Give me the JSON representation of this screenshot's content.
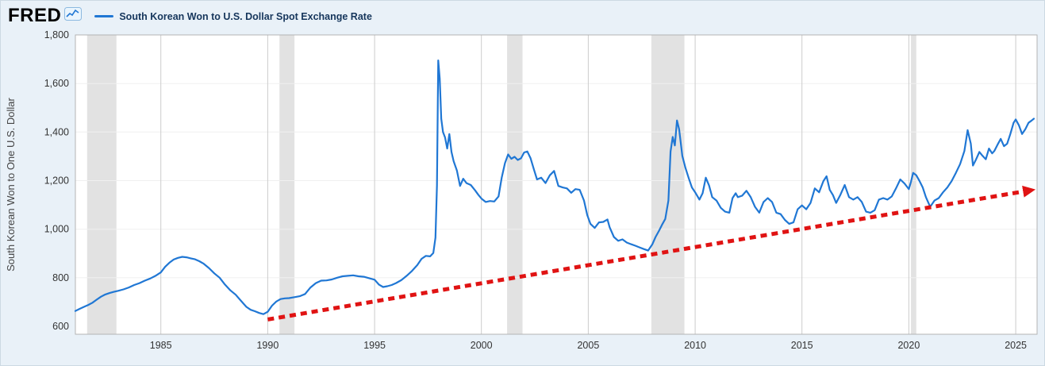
{
  "header": {
    "logo_text": "FRED",
    "legend": {
      "label": "South Korean Won to U.S. Dollar Spot Exchange Rate",
      "series_color": "#2077d4"
    }
  },
  "chart_data": {
    "type": "line",
    "title": "South Korean Won to U.S. Dollar Spot Exchange Rate",
    "xlabel": "",
    "ylabel": "South Korean Won to One U.S. Dollar",
    "xlim": [
      1981,
      2026
    ],
    "ylim": [
      600,
      1800
    ],
    "x_ticks": [
      1985,
      1990,
      1995,
      2000,
      2005,
      2010,
      2015,
      2020,
      2025
    ],
    "y_ticks": [
      {
        "value": 600,
        "label": "600"
      },
      {
        "value": 800,
        "label": "800"
      },
      {
        "value": 1000,
        "label": "1,000"
      },
      {
        "value": 1200,
        "label": "1,200"
      },
      {
        "value": 1400,
        "label": "1,400"
      },
      {
        "value": 1600,
        "label": "1,600"
      },
      {
        "value": 1800,
        "label": "1,800"
      }
    ],
    "grid": "vertical",
    "legend_position": "top-left",
    "recession_color": "#e2e2e2",
    "recession_bands": [
      {
        "start": 1981.55,
        "end": 1982.92
      },
      {
        "start": 1990.55,
        "end": 1991.25
      },
      {
        "start": 2001.2,
        "end": 2001.92
      },
      {
        "start": 2007.95,
        "end": 2009.5
      },
      {
        "start": 2020.1,
        "end": 2020.35
      }
    ],
    "series": [
      {
        "name": "South Korean Won to U.S. Dollar Spot Exchange Rate",
        "color": "#2077d4",
        "points": [
          [
            1981.0,
            663
          ],
          [
            1981.2,
            672
          ],
          [
            1981.4,
            680
          ],
          [
            1981.6,
            688
          ],
          [
            1981.8,
            697
          ],
          [
            1982.0,
            710
          ],
          [
            1982.2,
            722
          ],
          [
            1982.4,
            731
          ],
          [
            1982.6,
            737
          ],
          [
            1982.8,
            742
          ],
          [
            1983.0,
            746
          ],
          [
            1983.25,
            752
          ],
          [
            1983.5,
            760
          ],
          [
            1983.75,
            770
          ],
          [
            1984.0,
            778
          ],
          [
            1984.25,
            788
          ],
          [
            1984.5,
            797
          ],
          [
            1984.75,
            808
          ],
          [
            1985.0,
            822
          ],
          [
            1985.2,
            845
          ],
          [
            1985.4,
            862
          ],
          [
            1985.6,
            875
          ],
          [
            1985.8,
            882
          ],
          [
            1986.0,
            886
          ],
          [
            1986.2,
            884
          ],
          [
            1986.4,
            880
          ],
          [
            1986.6,
            876
          ],
          [
            1986.8,
            868
          ],
          [
            1987.0,
            858
          ],
          [
            1987.25,
            840
          ],
          [
            1987.5,
            818
          ],
          [
            1987.75,
            800
          ],
          [
            1988.0,
            772
          ],
          [
            1988.25,
            748
          ],
          [
            1988.5,
            730
          ],
          [
            1988.75,
            705
          ],
          [
            1989.0,
            680
          ],
          [
            1989.2,
            668
          ],
          [
            1989.4,
            662
          ],
          [
            1989.6,
            655
          ],
          [
            1989.8,
            650
          ],
          [
            1990.0,
            660
          ],
          [
            1990.2,
            685
          ],
          [
            1990.4,
            702
          ],
          [
            1990.6,
            712
          ],
          [
            1990.8,
            715
          ],
          [
            1991.0,
            716
          ],
          [
            1991.25,
            720
          ],
          [
            1991.5,
            724
          ],
          [
            1991.75,
            733
          ],
          [
            1992.0,
            760
          ],
          [
            1992.25,
            778
          ],
          [
            1992.5,
            788
          ],
          [
            1992.75,
            789
          ],
          [
            1993.0,
            793
          ],
          [
            1993.25,
            800
          ],
          [
            1993.5,
            806
          ],
          [
            1993.75,
            808
          ],
          [
            1994.0,
            810
          ],
          [
            1994.25,
            806
          ],
          [
            1994.5,
            804
          ],
          [
            1994.75,
            798
          ],
          [
            1995.0,
            792
          ],
          [
            1995.2,
            772
          ],
          [
            1995.4,
            762
          ],
          [
            1995.6,
            765
          ],
          [
            1995.8,
            770
          ],
          [
            1996.0,
            778
          ],
          [
            1996.25,
            790
          ],
          [
            1996.5,
            808
          ],
          [
            1996.75,
            828
          ],
          [
            1997.0,
            852
          ],
          [
            1997.2,
            878
          ],
          [
            1997.4,
            890
          ],
          [
            1997.6,
            888
          ],
          [
            1997.75,
            902
          ],
          [
            1997.85,
            965
          ],
          [
            1997.92,
            1180
          ],
          [
            1997.98,
            1695
          ],
          [
            1998.05,
            1620
          ],
          [
            1998.12,
            1455
          ],
          [
            1998.2,
            1400
          ],
          [
            1998.3,
            1378
          ],
          [
            1998.4,
            1332
          ],
          [
            1998.5,
            1392
          ],
          [
            1998.6,
            1318
          ],
          [
            1998.7,
            1280
          ],
          [
            1998.85,
            1242
          ],
          [
            1999.0,
            1178
          ],
          [
            1999.15,
            1208
          ],
          [
            1999.3,
            1190
          ],
          [
            1999.5,
            1182
          ],
          [
            1999.7,
            1160
          ],
          [
            1999.85,
            1142
          ],
          [
            2000.0,
            1126
          ],
          [
            2000.2,
            1112
          ],
          [
            2000.4,
            1116
          ],
          [
            2000.6,
            1114
          ],
          [
            2000.8,
            1135
          ],
          [
            2000.95,
            1212
          ],
          [
            2001.1,
            1272
          ],
          [
            2001.25,
            1308
          ],
          [
            2001.4,
            1290
          ],
          [
            2001.55,
            1298
          ],
          [
            2001.7,
            1285
          ],
          [
            2001.85,
            1292
          ],
          [
            2002.0,
            1316
          ],
          [
            2002.15,
            1320
          ],
          [
            2002.3,
            1292
          ],
          [
            2002.45,
            1248
          ],
          [
            2002.6,
            1205
          ],
          [
            2002.8,
            1212
          ],
          [
            2003.0,
            1190
          ],
          [
            2003.2,
            1222
          ],
          [
            2003.4,
            1240
          ],
          [
            2003.6,
            1178
          ],
          [
            2003.8,
            1172
          ],
          [
            2004.0,
            1168
          ],
          [
            2004.2,
            1150
          ],
          [
            2004.4,
            1165
          ],
          [
            2004.6,
            1162
          ],
          [
            2004.8,
            1118
          ],
          [
            2004.95,
            1058
          ],
          [
            2005.1,
            1022
          ],
          [
            2005.3,
            1005
          ],
          [
            2005.5,
            1028
          ],
          [
            2005.7,
            1030
          ],
          [
            2005.9,
            1040
          ],
          [
            2006.0,
            1008
          ],
          [
            2006.2,
            968
          ],
          [
            2006.4,
            952
          ],
          [
            2006.6,
            958
          ],
          [
            2006.8,
            945
          ],
          [
            2007.0,
            938
          ],
          [
            2007.2,
            932
          ],
          [
            2007.4,
            925
          ],
          [
            2007.6,
            918
          ],
          [
            2007.8,
            912
          ],
          [
            2008.0,
            938
          ],
          [
            2008.15,
            968
          ],
          [
            2008.3,
            992
          ],
          [
            2008.45,
            1018
          ],
          [
            2008.6,
            1042
          ],
          [
            2008.75,
            1118
          ],
          [
            2008.85,
            1320
          ],
          [
            2008.95,
            1380
          ],
          [
            2009.05,
            1345
          ],
          [
            2009.15,
            1448
          ],
          [
            2009.25,
            1412
          ],
          [
            2009.4,
            1302
          ],
          [
            2009.55,
            1252
          ],
          [
            2009.7,
            1210
          ],
          [
            2009.85,
            1172
          ],
          [
            2010.0,
            1152
          ],
          [
            2010.2,
            1122
          ],
          [
            2010.35,
            1148
          ],
          [
            2010.5,
            1212
          ],
          [
            2010.65,
            1180
          ],
          [
            2010.8,
            1132
          ],
          [
            2011.0,
            1118
          ],
          [
            2011.2,
            1088
          ],
          [
            2011.4,
            1072
          ],
          [
            2011.6,
            1068
          ],
          [
            2011.75,
            1128
          ],
          [
            2011.9,
            1148
          ],
          [
            2012.0,
            1132
          ],
          [
            2012.2,
            1138
          ],
          [
            2012.4,
            1158
          ],
          [
            2012.6,
            1132
          ],
          [
            2012.8,
            1092
          ],
          [
            2013.0,
            1068
          ],
          [
            2013.2,
            1112
          ],
          [
            2013.4,
            1128
          ],
          [
            2013.6,
            1112
          ],
          [
            2013.8,
            1068
          ],
          [
            2014.0,
            1062
          ],
          [
            2014.2,
            1038
          ],
          [
            2014.4,
            1022
          ],
          [
            2014.6,
            1028
          ],
          [
            2014.8,
            1082
          ],
          [
            2015.0,
            1098
          ],
          [
            2015.2,
            1082
          ],
          [
            2015.4,
            1108
          ],
          [
            2015.6,
            1168
          ],
          [
            2015.8,
            1152
          ],
          [
            2016.0,
            1198
          ],
          [
            2016.15,
            1218
          ],
          [
            2016.3,
            1162
          ],
          [
            2016.45,
            1140
          ],
          [
            2016.6,
            1108
          ],
          [
            2016.8,
            1142
          ],
          [
            2017.0,
            1182
          ],
          [
            2017.2,
            1132
          ],
          [
            2017.4,
            1122
          ],
          [
            2017.6,
            1132
          ],
          [
            2017.8,
            1112
          ],
          [
            2018.0,
            1072
          ],
          [
            2018.2,
            1068
          ],
          [
            2018.4,
            1078
          ],
          [
            2018.6,
            1122
          ],
          [
            2018.8,
            1128
          ],
          [
            2019.0,
            1122
          ],
          [
            2019.2,
            1135
          ],
          [
            2019.4,
            1168
          ],
          [
            2019.6,
            1205
          ],
          [
            2019.8,
            1188
          ],
          [
            2020.0,
            1165
          ],
          [
            2020.1,
            1195
          ],
          [
            2020.2,
            1232
          ],
          [
            2020.35,
            1222
          ],
          [
            2020.5,
            1198
          ],
          [
            2020.65,
            1172
          ],
          [
            2020.8,
            1132
          ],
          [
            2021.0,
            1092
          ],
          [
            2021.2,
            1118
          ],
          [
            2021.4,
            1128
          ],
          [
            2021.6,
            1152
          ],
          [
            2021.8,
            1172
          ],
          [
            2022.0,
            1198
          ],
          [
            2022.2,
            1232
          ],
          [
            2022.4,
            1268
          ],
          [
            2022.6,
            1322
          ],
          [
            2022.75,
            1408
          ],
          [
            2022.9,
            1352
          ],
          [
            2023.0,
            1262
          ],
          [
            2023.15,
            1288
          ],
          [
            2023.3,
            1318
          ],
          [
            2023.45,
            1302
          ],
          [
            2023.6,
            1288
          ],
          [
            2023.75,
            1332
          ],
          [
            2023.9,
            1312
          ],
          [
            2024.0,
            1322
          ],
          [
            2024.15,
            1348
          ],
          [
            2024.3,
            1372
          ],
          [
            2024.45,
            1342
          ],
          [
            2024.6,
            1352
          ],
          [
            2024.75,
            1392
          ],
          [
            2024.9,
            1438
          ],
          [
            2025.0,
            1452
          ],
          [
            2025.15,
            1428
          ],
          [
            2025.3,
            1392
          ],
          [
            2025.45,
            1412
          ],
          [
            2025.6,
            1438
          ],
          [
            2025.75,
            1448
          ],
          [
            2025.85,
            1455
          ]
        ]
      }
    ],
    "annotations": [
      {
        "type": "trend-arrow",
        "style": "dashed",
        "color": "#e01313",
        "from": [
          1990.0,
          628
        ],
        "to": [
          2025.9,
          1162
        ]
      }
    ]
  }
}
